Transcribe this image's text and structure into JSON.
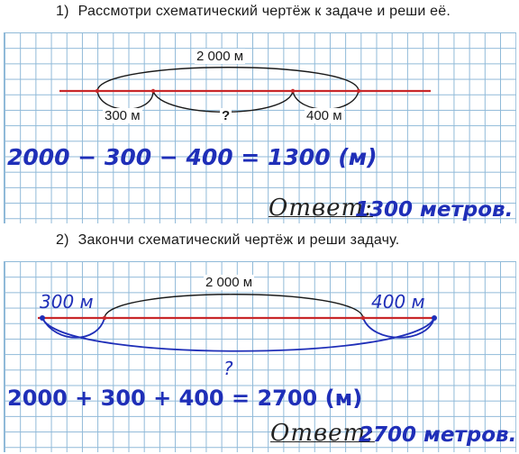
{
  "task1": {
    "number": "1)",
    "text": "Рассмотри схематический чертёж к задаче и реши её.",
    "total_label": "2 000 м",
    "left_label": "300 м",
    "middle_label": "?",
    "right_label": "400 м",
    "equation": "2000 − 300 − 400 = 1300 (м)",
    "answer_word": "Ответ:",
    "answer_value": "1300 метров."
  },
  "task2": {
    "number": "2)",
    "text": "Закончи схематический чертёж и реши задачу.",
    "total_label": "2 000 м",
    "left_label": "300 м",
    "right_label": "400 м",
    "bottom_label": "?",
    "equation": "2000 + 300 + 400 = 2700 (м)",
    "answer_word": "Ответ:",
    "answer_value": "2700 метров."
  },
  "colors": {
    "segment_line": "#c8282a",
    "handwriting": "#1f2fb8",
    "grid": "#8fb9d8",
    "print_text": "#1a1a1a"
  }
}
